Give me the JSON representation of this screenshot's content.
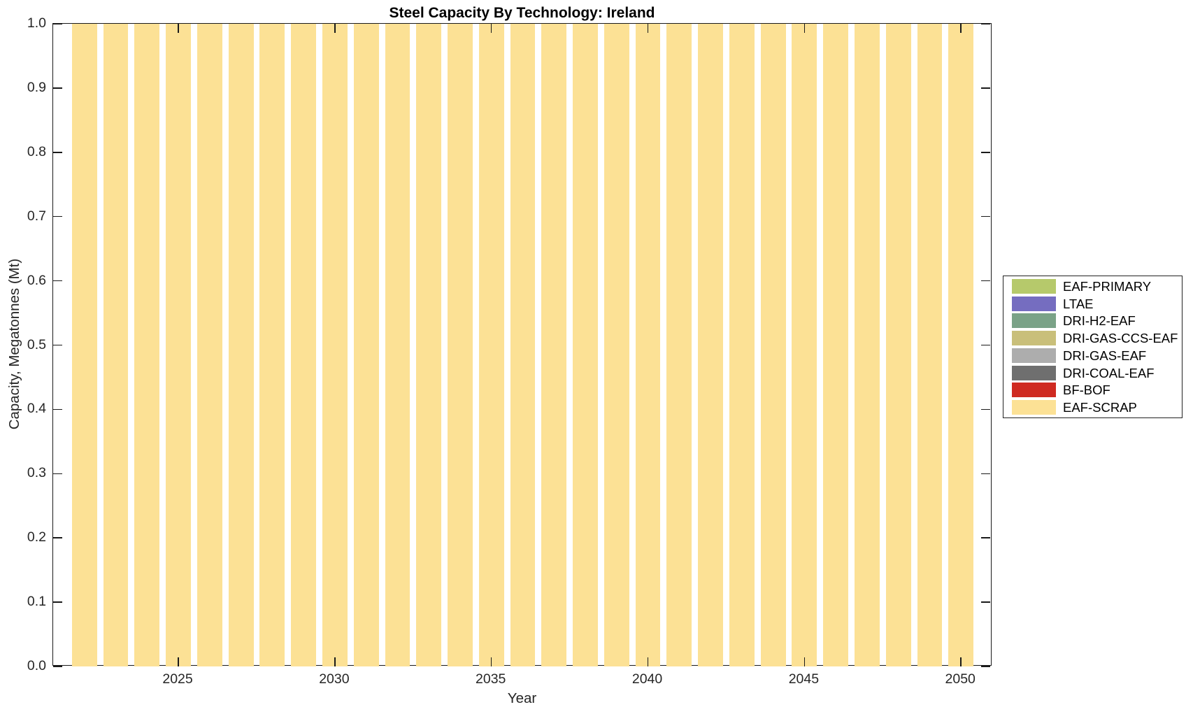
{
  "chart_data": {
    "type": "bar",
    "stacked": true,
    "title": "Steel Capacity By Technology: Ireland",
    "xlabel": "Year",
    "ylabel": "Capacity, Megatonnes (Mt)",
    "x": [
      2022,
      2023,
      2024,
      2025,
      2026,
      2027,
      2028,
      2029,
      2030,
      2031,
      2032,
      2033,
      2034,
      2035,
      2036,
      2037,
      2038,
      2039,
      2040,
      2041,
      2042,
      2043,
      2044,
      2045,
      2046,
      2047,
      2048,
      2049,
      2050
    ],
    "series": [
      {
        "name": "EAF-SCRAP",
        "color": "#FCE195",
        "values": [
          1.0,
          1.0,
          1.0,
          1.0,
          1.0,
          1.0,
          1.0,
          1.0,
          1.0,
          1.0,
          1.0,
          1.0,
          1.0,
          1.0,
          1.0,
          1.0,
          1.0,
          1.0,
          1.0,
          1.0,
          1.0,
          1.0,
          1.0,
          1.0,
          1.0,
          1.0,
          1.0,
          1.0,
          1.0
        ]
      }
    ],
    "legend_entries": [
      {
        "label": "EAF-PRIMARY",
        "color": "#B6C96B"
      },
      {
        "label": "LTAE",
        "color": "#756DC0"
      },
      {
        "label": "DRI-H2-EAF",
        "color": "#7AA287"
      },
      {
        "label": "DRI-GAS-CCS-EAF",
        "color": "#C9BF7A"
      },
      {
        "label": "DRI-GAS-EAF",
        "color": "#ADADAD"
      },
      {
        "label": "DRI-COAL-EAF",
        "color": "#6F6F6F"
      },
      {
        "label": "BF-BOF",
        "color": "#CF2A21"
      },
      {
        "label": "EAF-SCRAP",
        "color": "#FCE195"
      }
    ],
    "xticks": [
      2025,
      2030,
      2035,
      2040,
      2045,
      2050
    ],
    "yticks": [
      {
        "value": 0.0,
        "label": "0.0"
      },
      {
        "value": 0.1,
        "label": "0.1"
      },
      {
        "value": 0.2,
        "label": "0.2"
      },
      {
        "value": 0.3,
        "label": "0.3"
      },
      {
        "value": 0.4,
        "label": "0.4"
      },
      {
        "value": 0.5,
        "label": "0.5"
      },
      {
        "value": 0.6,
        "label": "0.6"
      },
      {
        "value": 0.7,
        "label": "0.7"
      },
      {
        "value": 0.8,
        "label": "0.8"
      },
      {
        "value": 0.9,
        "label": "0.9"
      },
      {
        "value": 1.0,
        "label": "1.0"
      }
    ],
    "xlim": [
      2021,
      2051
    ],
    "ylim": [
      0,
      1
    ],
    "bar_width_fraction": 0.8,
    "grid": false,
    "legend_position": "right-outside",
    "axis_color": "#1a1a1a",
    "tick_label_color": "#262626",
    "background_color": "#ffffff"
  }
}
